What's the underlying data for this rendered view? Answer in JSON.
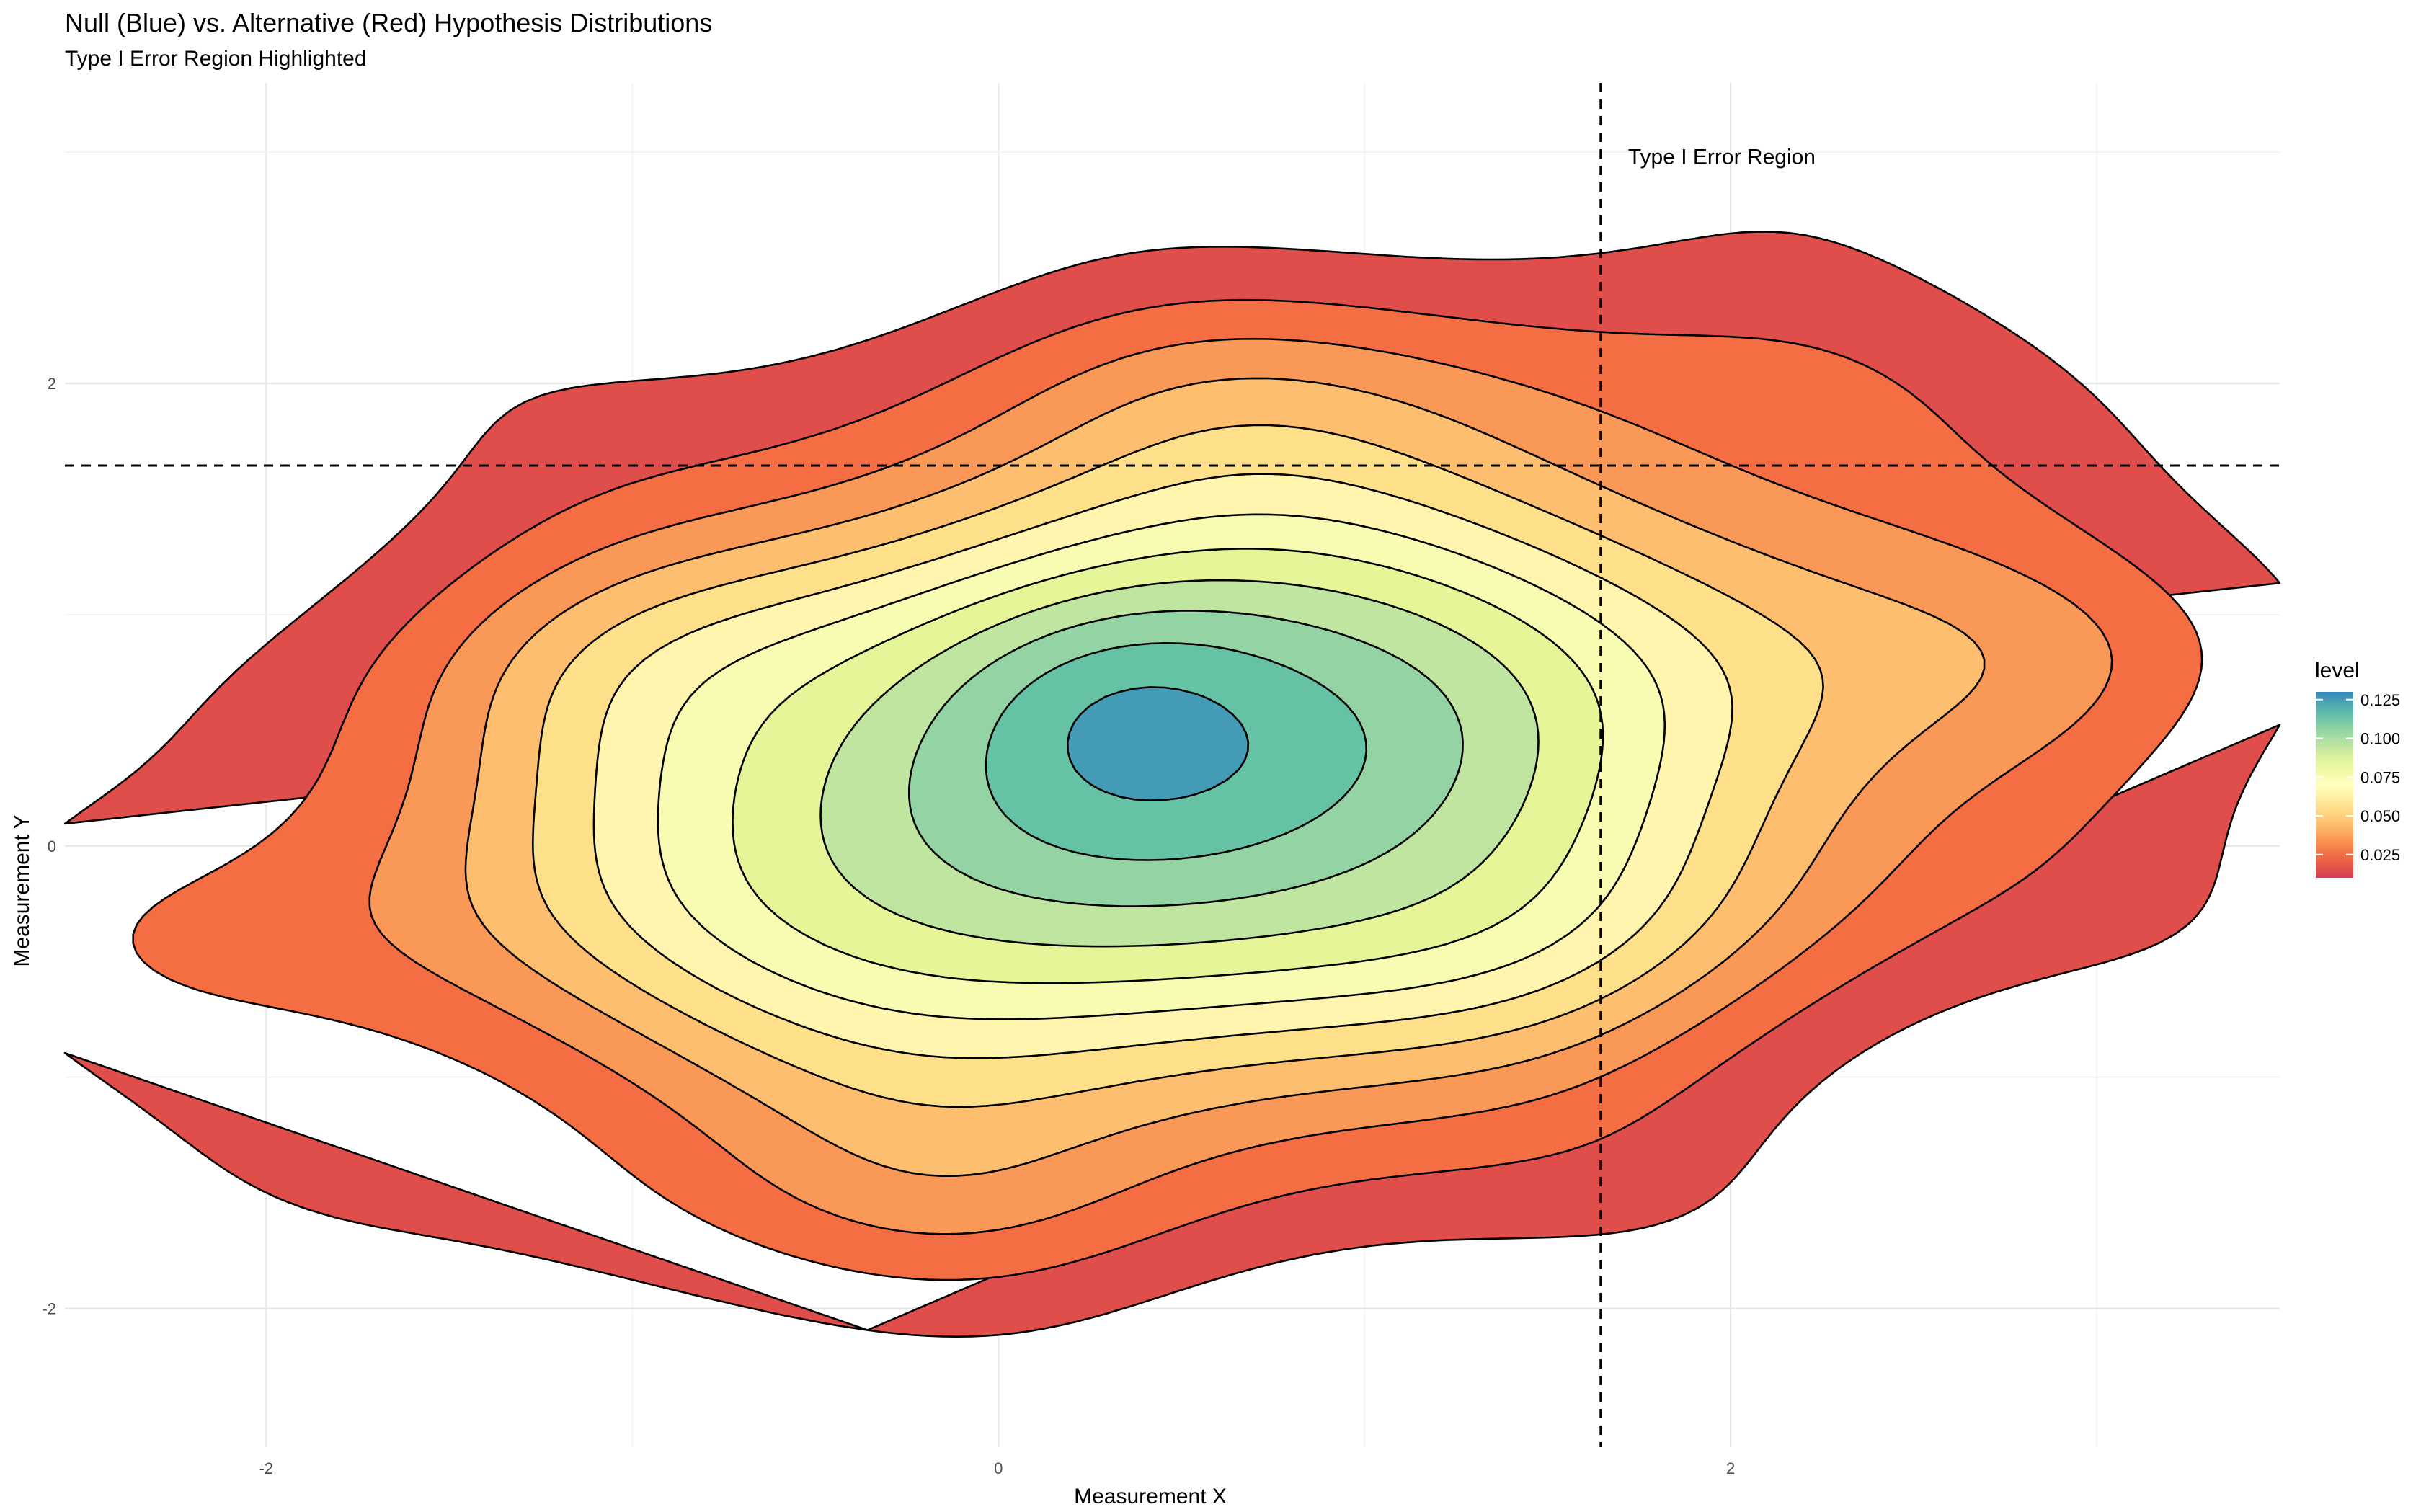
{
  "chart_data": {
    "type": "contour",
    "title": "Null (Blue) vs. Alternative (Red) Hypothesis Distributions",
    "subtitle": "Type I Error Region Highlighted",
    "xlabel": "Measurement X",
    "ylabel": "Measurement Y",
    "xlim": [
      -2.55,
      3.5
    ],
    "ylim": [
      -2.6,
      3.3
    ],
    "x_ticks": [
      -2,
      0,
      2
    ],
    "y_ticks": [
      -2,
      0,
      2
    ],
    "x_tick_labels": [
      "-2",
      "0",
      "2"
    ],
    "y_tick_labels": [
      "-2",
      "0",
      "2"
    ],
    "grid": true,
    "reference_lines": [
      {
        "orientation": "vertical",
        "value": 1.645,
        "style": "dashed"
      },
      {
        "orientation": "horizontal",
        "value": 1.645,
        "style": "dashed"
      }
    ],
    "annotation": {
      "text": "Type I Error Region",
      "x": 1.72,
      "y": 2.98
    },
    "density": {
      "center": [
        0.5,
        0.3
      ],
      "x_spread": 1.35,
      "y_spread": 1.05,
      "correlation": 0.22,
      "peak_location": [
        0.3,
        0.7
      ],
      "max_level": 0.13
    },
    "levels": [
      0.01,
      0.02,
      0.03,
      0.04,
      0.05,
      0.06,
      0.07,
      0.08,
      0.09,
      0.1,
      0.11,
      0.12,
      0.13
    ],
    "legend": {
      "title": "level",
      "position": "right",
      "range": [
        0.01,
        0.13
      ],
      "breaks": [
        0.125,
        0.1,
        0.075,
        0.05,
        0.025
      ],
      "break_labels": [
        "0.125",
        "0.100",
        "0.075",
        "0.050",
        "0.025"
      ],
      "palette": "Spectral",
      "colors": [
        "#d53e4f",
        "#f46d43",
        "#fdae61",
        "#fee08b",
        "#ffffbf",
        "#e6f598",
        "#abdda4",
        "#66c2a5",
        "#3288bd"
      ]
    }
  }
}
